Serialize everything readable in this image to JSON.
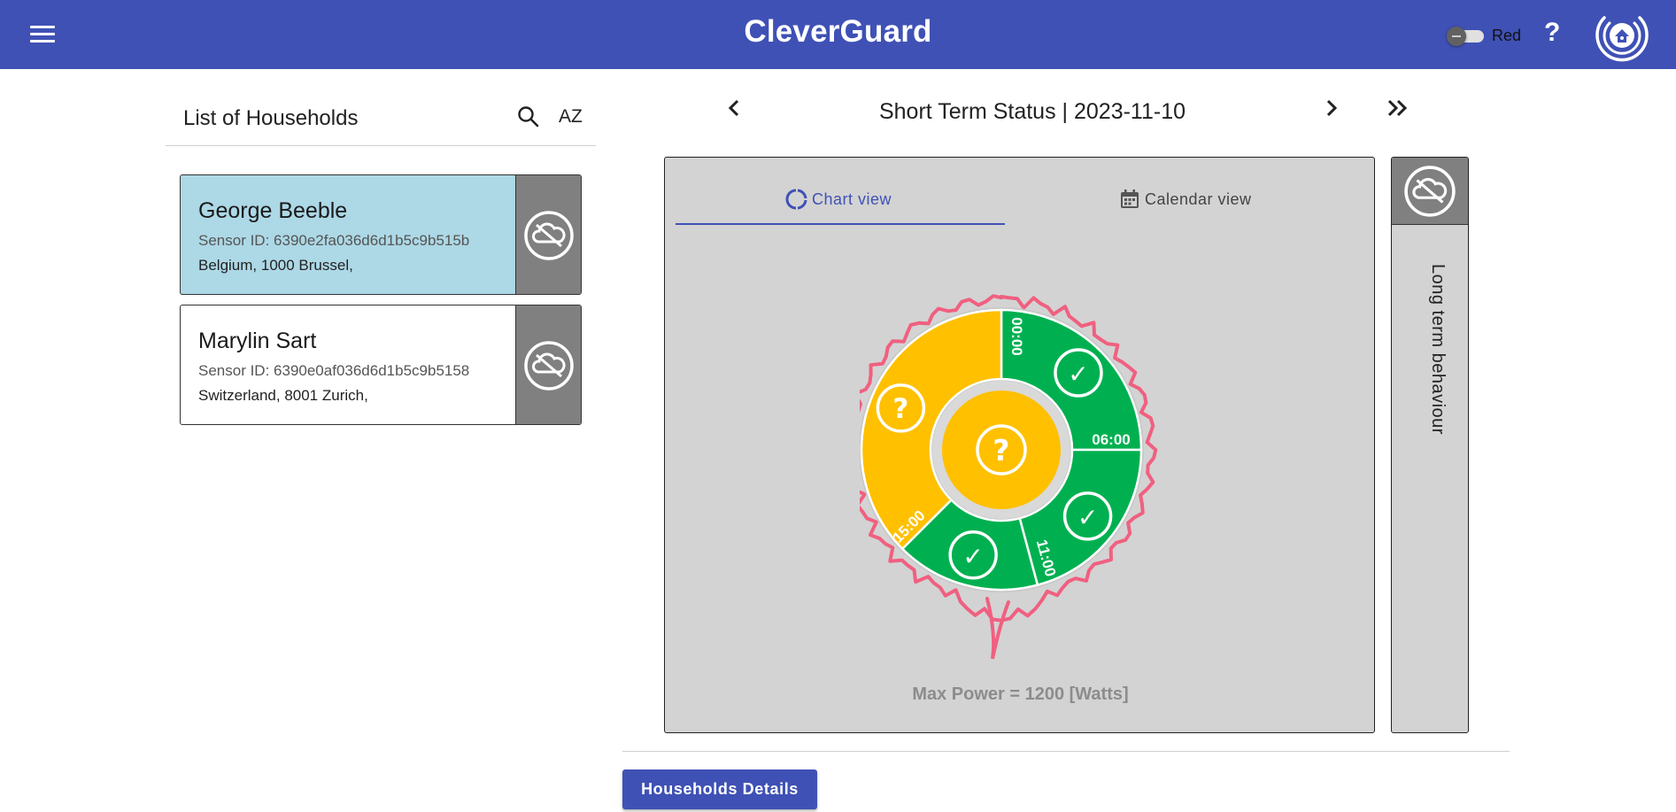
{
  "header": {
    "title": "CleverGuard",
    "menu_icon": "menu-icon",
    "toggle_label": "Red",
    "help_label": "?",
    "logo_icon": "home-shield-logo"
  },
  "households": {
    "title": "List of Households",
    "search_icon": "search-icon",
    "sort_label": "AZ",
    "items": [
      {
        "name": "George Beeble",
        "sensor": "Sensor ID: 6390e2fa036d6d1b5c9b515b",
        "address": "Belgium, 1000 Brussel,",
        "selected": true,
        "status_icon": "cloud-off-icon"
      },
      {
        "name": "Marylin Sart",
        "sensor": "Sensor ID: 6390e0af036d6d1b5c9b5158",
        "address": "Switzerland, 8001 Zurich,",
        "selected": false,
        "status_icon": "cloud-off-icon"
      }
    ]
  },
  "status": {
    "title": "Short Term Status | 2023-11-10",
    "tabs": [
      {
        "label": "Chart view",
        "active": true,
        "icon": "donut-icon"
      },
      {
        "label": "Calendar view",
        "active": false,
        "icon": "calendar-icon"
      }
    ],
    "max_power": "Max Power = 1200 [Watts]",
    "colors": {
      "ok": "#00b050",
      "unknown": "#ffc000",
      "outline": "#f06080",
      "panel": "#d3d3d3"
    }
  },
  "chart_data": {
    "type": "pie",
    "center_status": "unknown",
    "center_label": "?",
    "segments": [
      {
        "start": "00:00",
        "end": "06:00",
        "status": "ok",
        "symbol": "✓"
      },
      {
        "start": "06:00",
        "end": "11:00",
        "status": "ok",
        "symbol": "✓"
      },
      {
        "start": "11:00",
        "end": "15:00",
        "status": "ok",
        "symbol": "✓"
      },
      {
        "start": "15:00",
        "end": "24:00",
        "status": "unknown",
        "symbol": "?"
      }
    ],
    "tick_labels": [
      "00:00",
      "06:00",
      "11:00",
      "15:00"
    ]
  },
  "long_term": {
    "label": "Long term behaviour",
    "icon": "cloud-off-icon"
  },
  "footer": {
    "details_button": "Households Details"
  }
}
